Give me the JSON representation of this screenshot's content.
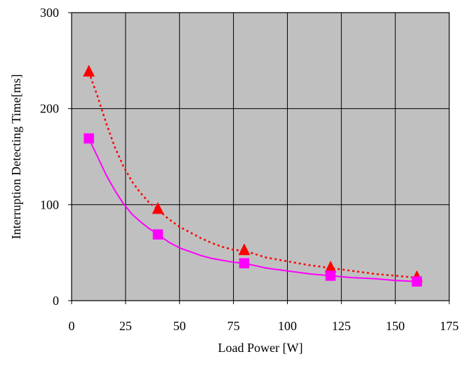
{
  "chart_data": {
    "type": "line",
    "xlabel": "Load Power [W]",
    "ylabel": "Interruption Detecting Time[ms]",
    "xlim": [
      0,
      175
    ],
    "ylim": [
      0,
      300
    ],
    "x_ticks": [
      "0",
      "25",
      "50",
      "75",
      "100",
      "125",
      "150",
      "175"
    ],
    "y_ticks": [
      "0",
      "100",
      "200",
      "300"
    ],
    "grid": true,
    "plot_background": "#c0c0c0",
    "series": [
      {
        "marker": "triangle",
        "line_style": "dotted",
        "color": "#ff0000",
        "x": [
          8,
          40,
          80,
          120,
          160
        ],
        "y": [
          238,
          95,
          52,
          34,
          24
        ],
        "curve": {
          "x": [
            8,
            12,
            16,
            20,
            24,
            28,
            32,
            36,
            40,
            45,
            50,
            55,
            60,
            65,
            70,
            75,
            80,
            90,
            100,
            110,
            120,
            130,
            140,
            150,
            160
          ],
          "y": [
            238,
            213,
            185,
            160,
            140,
            124,
            112,
            102,
            95,
            85,
            77,
            71,
            65,
            60,
            56,
            53,
            52,
            45,
            41,
            37,
            34,
            31,
            28,
            26,
            24
          ]
        }
      },
      {
        "marker": "square",
        "line_style": "solid",
        "color": "#ff00ff",
        "x": [
          8,
          40,
          80,
          120,
          160
        ],
        "y": [
          169,
          69,
          39,
          26,
          20
        ],
        "curve": {
          "x": [
            8,
            12,
            16,
            20,
            24,
            28,
            32,
            36,
            40,
            45,
            50,
            55,
            60,
            65,
            70,
            75,
            80,
            90,
            100,
            110,
            120,
            130,
            140,
            150,
            160
          ],
          "y": [
            169,
            150,
            131,
            115,
            101,
            90,
            82,
            75,
            69,
            61,
            55,
            51,
            47,
            44,
            42,
            40,
            39,
            34,
            31,
            28,
            26,
            24,
            23,
            21,
            20
          ]
        }
      }
    ]
  }
}
